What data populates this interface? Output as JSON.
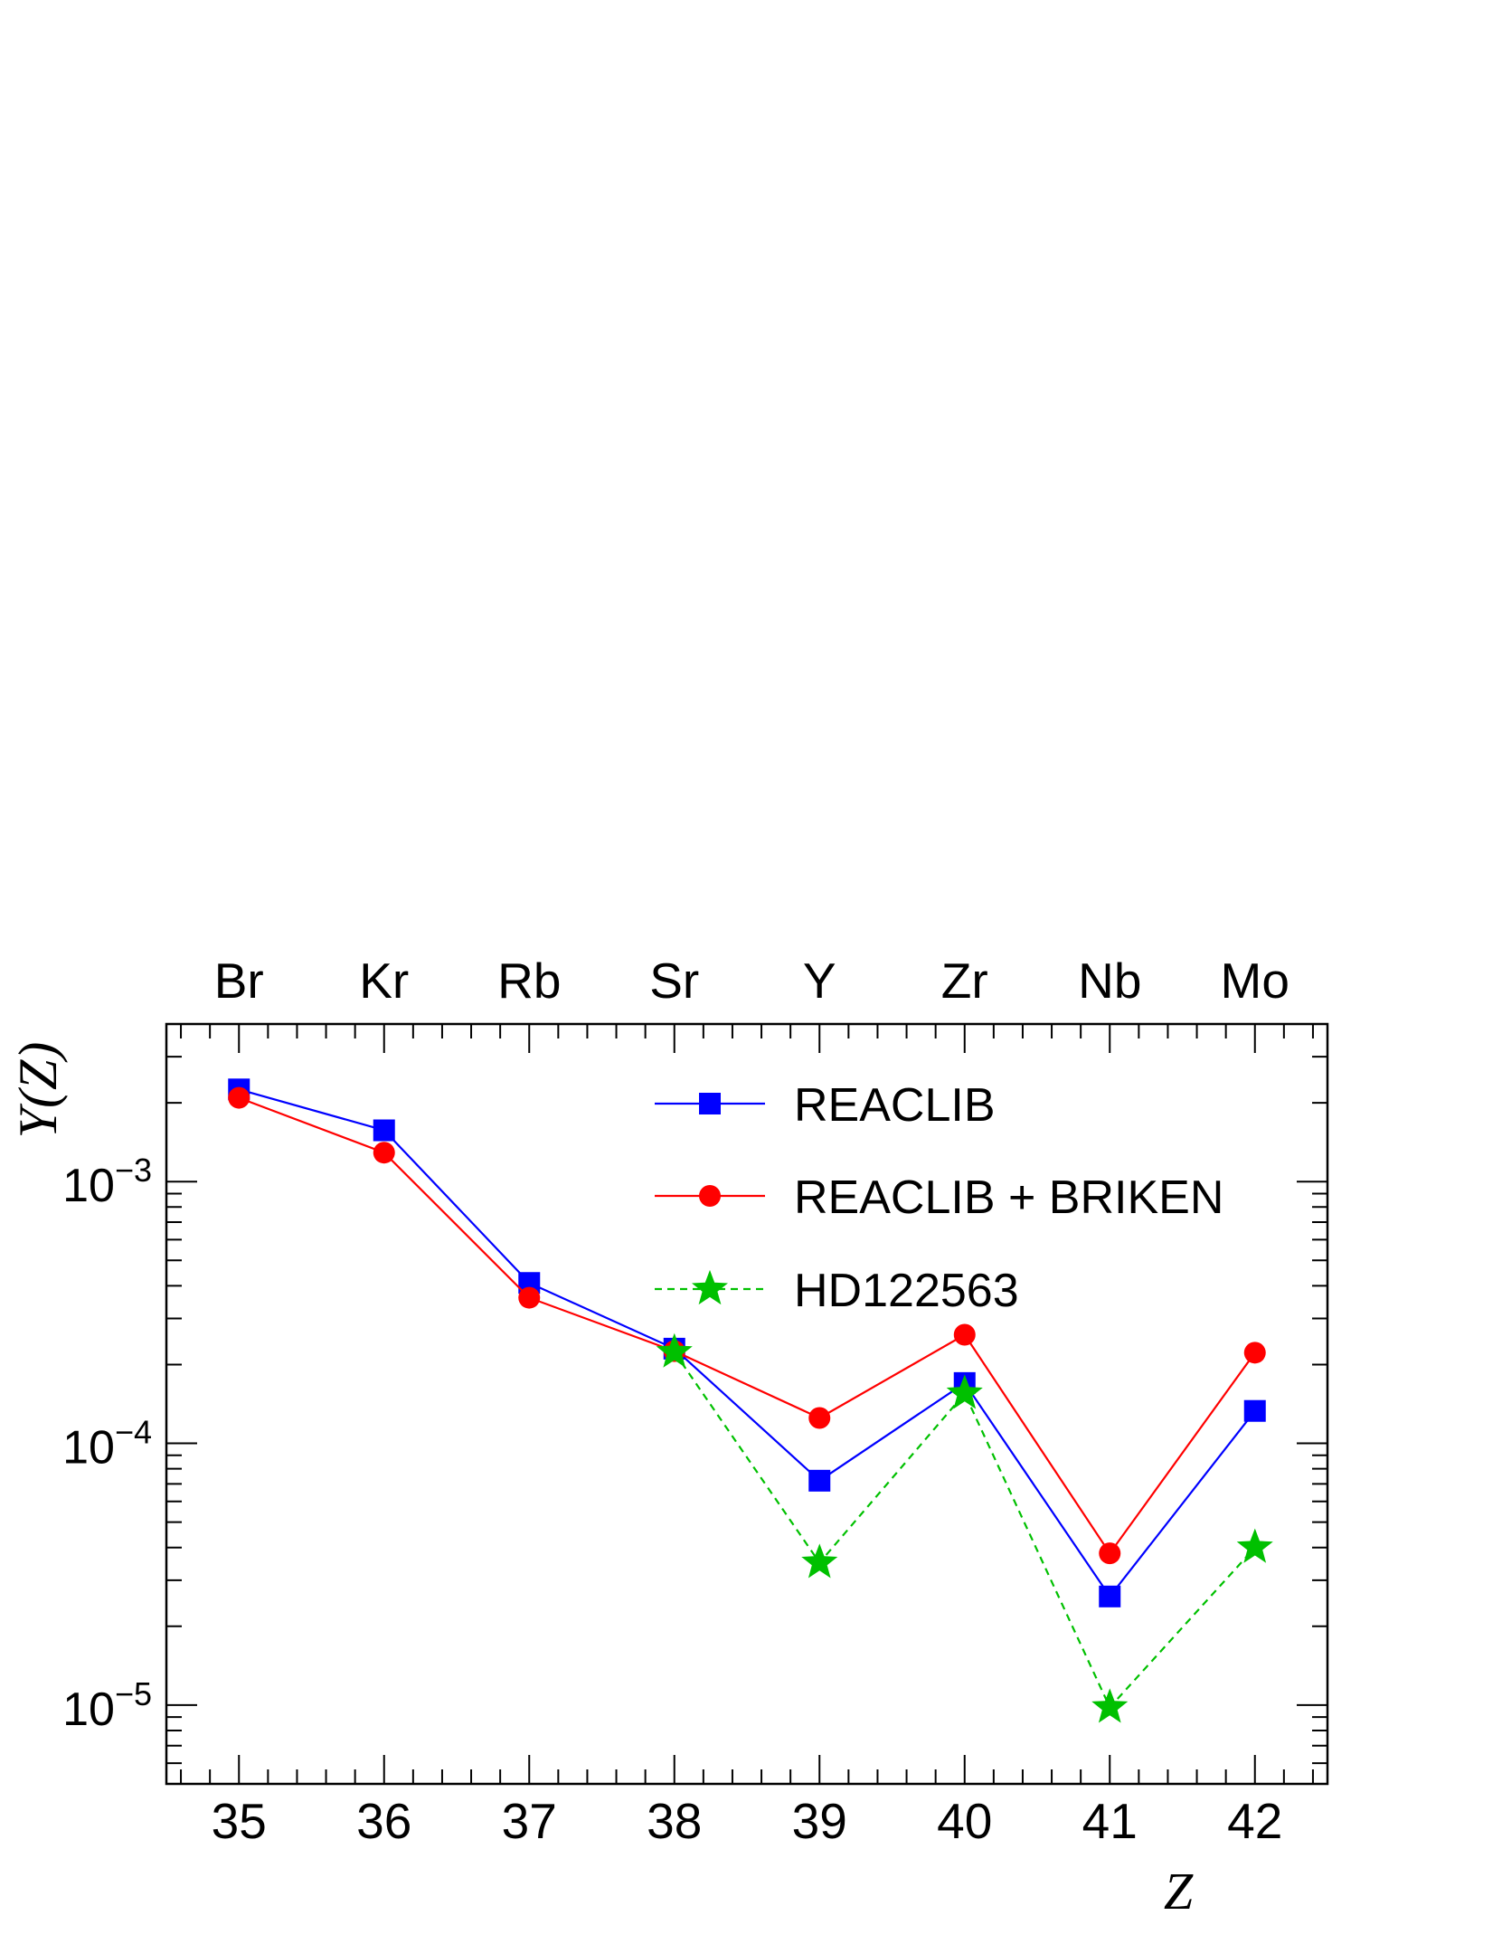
{
  "chart_data": {
    "type": "line",
    "title": "",
    "xlabel": "Z",
    "ylabel": "Y(Z)",
    "yscale": "log",
    "xlim": [
      34.5,
      42.5
    ],
    "ylim": [
      5e-06,
      0.004
    ],
    "x": [
      35,
      36,
      37,
      38,
      39,
      40,
      41,
      42
    ],
    "x_ticks": [
      "35",
      "36",
      "37",
      "38",
      "39",
      "40",
      "41",
      "42"
    ],
    "top_labels": [
      "Br",
      "Kr",
      "Rb",
      "Sr",
      "Y",
      "Zr",
      "Nb",
      "Mo"
    ],
    "y_ticks": [
      {
        "value": 0.001,
        "base": "10",
        "exp": "−3"
      },
      {
        "value": 0.0001,
        "base": "10",
        "exp": "−4"
      },
      {
        "value": 1e-05,
        "base": "10",
        "exp": "−5"
      }
    ],
    "grid": false,
    "legend_position": "top-right",
    "series": [
      {
        "name": "REACLIB",
        "color": "#0000ff",
        "marker": "square",
        "dashed": false,
        "x": [
          35,
          36,
          37,
          38,
          39,
          40,
          41,
          42
        ],
        "values": [
          0.00225,
          0.00157,
          0.00041,
          0.00023,
          7.2e-05,
          0.00017,
          2.6e-05,
          0.000133
        ]
      },
      {
        "name": "REACLIB + BRIKEN",
        "color": "#ff0000",
        "marker": "circle",
        "dashed": false,
        "x": [
          35,
          36,
          37,
          38,
          39,
          40,
          41,
          42
        ],
        "values": [
          0.00209,
          0.00129,
          0.00036,
          0.000225,
          0.000125,
          0.00026,
          3.8e-05,
          0.000222
        ]
      },
      {
        "name": "HD122563",
        "color": "#00c000",
        "marker": "star",
        "dashed": true,
        "x": [
          38,
          39,
          40,
          41,
          42
        ],
        "values": [
          0.000223,
          3.5e-05,
          0.000155,
          9.8e-06,
          4e-05
        ]
      }
    ]
  }
}
